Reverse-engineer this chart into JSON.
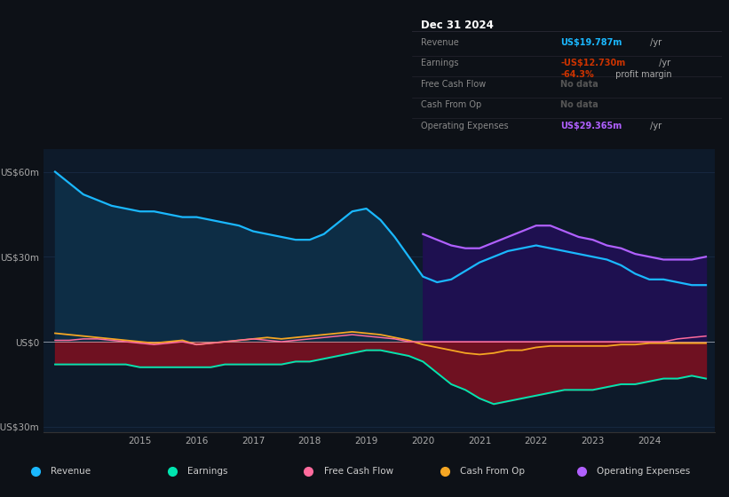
{
  "bg_color": "#0d1117",
  "plot_bg_color": "#0d1a2a",
  "ylim": [
    -32,
    68
  ],
  "grid_color": "#1e3350",
  "years": [
    2013.5,
    2013.75,
    2014,
    2014.25,
    2014.5,
    2014.75,
    2015,
    2015.25,
    2015.5,
    2015.75,
    2016,
    2016.25,
    2016.5,
    2016.75,
    2017,
    2017.25,
    2017.5,
    2017.75,
    2018,
    2018.25,
    2018.5,
    2018.75,
    2019,
    2019.25,
    2019.5,
    2019.75,
    2020,
    2020.25,
    2020.5,
    2020.75,
    2021,
    2021.25,
    2021.5,
    2021.75,
    2022,
    2022.25,
    2022.5,
    2022.75,
    2023,
    2023.25,
    2023.5,
    2023.75,
    2024,
    2024.25,
    2024.5,
    2024.75,
    2025.0
  ],
  "revenue": [
    60,
    56,
    52,
    50,
    48,
    47,
    46,
    46,
    45,
    44,
    44,
    43,
    42,
    41,
    39,
    38,
    37,
    36,
    36,
    38,
    42,
    46,
    47,
    43,
    37,
    30,
    23,
    21,
    22,
    25,
    28,
    30,
    32,
    33,
    34,
    33,
    32,
    31,
    30,
    29,
    27,
    24,
    22,
    22,
    21,
    20,
    20
  ],
  "earnings": [
    -8,
    -8,
    -8,
    -8,
    -8,
    -8,
    -9,
    -9,
    -9,
    -9,
    -9,
    -9,
    -8,
    -8,
    -8,
    -8,
    -8,
    -7,
    -7,
    -6,
    -5,
    -4,
    -3,
    -3,
    -4,
    -5,
    -7,
    -11,
    -15,
    -17,
    -20,
    -22,
    -21,
    -20,
    -19,
    -18,
    -17,
    -17,
    -17,
    -16,
    -15,
    -15,
    -14,
    -13,
    -13,
    -12,
    -13
  ],
  "free_cash_flow": [
    0.5,
    0.5,
    1,
    1,
    0.5,
    0,
    -0.5,
    -1,
    -0.5,
    0,
    -1,
    -0.5,
    0,
    0.5,
    1,
    0.5,
    0,
    0.5,
    1,
    1.5,
    2,
    2.5,
    2,
    1.5,
    1,
    0,
    0,
    0,
    0,
    0,
    0,
    0,
    0,
    0,
    0,
    0,
    0,
    0,
    0,
    0,
    0,
    0,
    0,
    0,
    1,
    1.5,
    2
  ],
  "cash_from_op": [
    3,
    2.5,
    2,
    1.5,
    1,
    0.5,
    0,
    -0.5,
    0,
    0.5,
    -1,
    -0.5,
    0,
    0.5,
    1,
    1.5,
    1,
    1.5,
    2,
    2.5,
    3,
    3.5,
    3,
    2.5,
    1.5,
    0.5,
    -1,
    -2,
    -3,
    -4,
    -4.5,
    -4,
    -3,
    -3,
    -2,
    -1.5,
    -1.5,
    -1.5,
    -1.5,
    -1.5,
    -1,
    -1,
    -0.5,
    -0.5,
    -0.5,
    -0.5,
    -0.5
  ],
  "opex_x": [
    2020,
    2020.25,
    2020.5,
    2020.75,
    2021,
    2021.25,
    2021.5,
    2021.75,
    2022,
    2022.25,
    2022.5,
    2022.75,
    2023,
    2023.25,
    2023.5,
    2023.75,
    2024,
    2024.25,
    2024.5,
    2024.75,
    2025.0
  ],
  "opex": [
    38,
    36,
    34,
    33,
    33,
    35,
    37,
    39,
    41,
    41,
    39,
    37,
    36,
    34,
    33,
    31,
    30,
    29,
    29,
    29,
    30
  ],
  "revenue_color": "#1ab8ff",
  "revenue_fill_color": "#0d2d45",
  "earnings_color": "#00e5b0",
  "free_cash_flow_color": "#ff6b9d",
  "cash_from_op_color": "#f5a623",
  "opex_color": "#b060ff",
  "opex_fill_color": "#1e1050",
  "neg_earnings_fill": "#7b1020",
  "zero_line_color": "#ffffff",
  "legend_items": [
    {
      "label": "Revenue",
      "color": "#1ab8ff"
    },
    {
      "label": "Earnings",
      "color": "#00e5b0"
    },
    {
      "label": "Free Cash Flow",
      "color": "#ff6b9d"
    },
    {
      "label": "Cash From Op",
      "color": "#f5a623"
    },
    {
      "label": "Operating Expenses",
      "color": "#b060ff"
    }
  ],
  "info_box": {
    "title": "Dec 31 2024",
    "title_color": "#ffffff",
    "bg_color": "#111318",
    "border_color": "#2a2a35",
    "label_color": "#888888",
    "rows": [
      {
        "label": "Revenue",
        "value": "US$19.787m",
        "unit": " /yr",
        "value_color": "#1ab8ff"
      },
      {
        "label": "Earnings",
        "value": "-US$12.730m",
        "unit": " /yr",
        "value_color": "#cc3300",
        "sub_value": "-64.3%",
        "sub_unit": " profit margin",
        "sub_color": "#cc3300"
      },
      {
        "label": "Free Cash Flow",
        "value": "No data",
        "unit": "",
        "value_color": "#555555"
      },
      {
        "label": "Cash From Op",
        "value": "No data",
        "unit": "",
        "value_color": "#555555"
      },
      {
        "label": "Operating Expenses",
        "value": "US$29.365m",
        "unit": " /yr",
        "value_color": "#b060ff"
      }
    ]
  }
}
